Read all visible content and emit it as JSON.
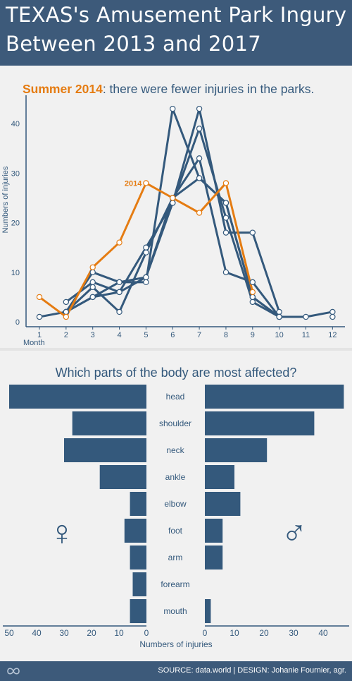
{
  "header": {
    "title_line1": "TEXAS's Amusement Park Ingury",
    "title_line2": "Between 2013 and 2017"
  },
  "colors": {
    "header_bg": "#3d5a7a",
    "series": "#34597c",
    "highlight": "#e57c12",
    "background": "#f1f1f1"
  },
  "chart_data": [
    {
      "type": "line",
      "title_highlight": "Summer 2014",
      "title_rest": ": there were fewer injuries in the parks.",
      "xlabel": "Month",
      "ylabel": "Numbers of injuries",
      "x": [
        1,
        2,
        3,
        4,
        5,
        6,
        7,
        8,
        9,
        10,
        11,
        12
      ],
      "xlim": [
        0.5,
        12.5
      ],
      "ylim": [
        0,
        44
      ],
      "yticks": [
        0,
        10,
        20,
        30,
        40
      ],
      "series": [
        {
          "name": "2014",
          "highlight": true,
          "values": [
            5,
            1,
            11,
            16,
            28,
            25,
            22,
            28,
            6,
            null,
            null,
            null
          ]
        },
        {
          "values": [
            null,
            2,
            10,
            8,
            8,
            43,
            29,
            24,
            5,
            1,
            1,
            2
          ]
        },
        {
          "values": [
            null,
            4,
            8,
            6,
            15,
            24,
            43,
            18,
            18,
            2,
            null,
            1
          ]
        },
        {
          "values": [
            null,
            2,
            5,
            8,
            9,
            24,
            39,
            21,
            4,
            1,
            null,
            null
          ]
        },
        {
          "values": [
            1,
            2,
            7,
            2,
            14,
            25,
            33,
            10,
            8,
            1,
            null,
            null
          ]
        },
        {
          "values": [
            null,
            2,
            5,
            6,
            9,
            25,
            29,
            24,
            5,
            1,
            null,
            null
          ]
        }
      ],
      "annotation": "2014"
    },
    {
      "type": "bar",
      "orientation": "horizontal",
      "title": "Which parts of the body are most affected?",
      "categories": [
        "head",
        "shoulder",
        "neck",
        "ankle",
        "elbow",
        "foot",
        "arm",
        "forearm",
        "mouth"
      ],
      "series": [
        {
          "symbol": "♀",
          "values": [
            50,
            27,
            30,
            17,
            6,
            8,
            6,
            5,
            6
          ]
        },
        {
          "symbol": "♂",
          "values": [
            47,
            37,
            21,
            10,
            12,
            6,
            6,
            0,
            2
          ]
        }
      ],
      "xlabel": "Numbers of injuries",
      "xlim": [
        0,
        50
      ],
      "left_ticks": [
        50,
        40,
        30,
        20,
        10,
        0
      ],
      "right_ticks": [
        0,
        10,
        20,
        30,
        40
      ]
    }
  ],
  "footer": {
    "text": "SOURCE: data.world  |  DESIGN: Johanie Fournier, agr."
  }
}
